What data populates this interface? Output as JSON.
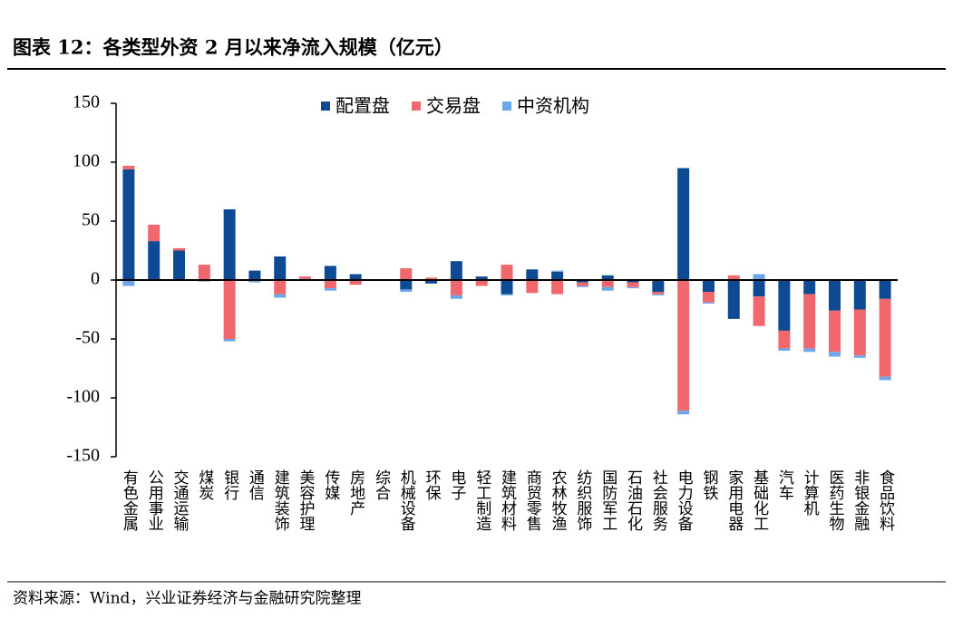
{
  "chart_data": {
    "type": "stacked_bar",
    "title": "图表 12：各类型外资 2 月以来净流入规模（亿元）",
    "source": "资料来源：Wind，兴业证券经济与金融研究院整理",
    "categories": [
      "有色金属",
      "公用事业",
      "交通运输",
      "煤炭",
      "银行",
      "通信",
      "建筑装饰",
      "美容护理",
      "传媒",
      "房地产",
      "综合",
      "机械设备",
      "环保",
      "电子",
      "轻工制造",
      "建筑材料",
      "商贸零售",
      "农林牧渔",
      "纺织服饰",
      "国防军工",
      "石油石化",
      "社会服务",
      "电力设备",
      "钢铁",
      "家用电器",
      "基础化工",
      "汽车",
      "计算机",
      "医药生物",
      "非银金融",
      "食品饮料"
    ],
    "series": [
      {
        "name": "配置盘",
        "color": "#0d4a93",
        "values": [
          94,
          33,
          25,
          -1,
          60,
          8,
          20,
          1,
          12,
          5,
          0,
          -8,
          -3,
          16,
          3,
          -12,
          9,
          7,
          -2,
          4,
          -2,
          -10,
          95,
          -10,
          -33,
          -14,
          -43,
          -12,
          -26,
          -25,
          -16
        ]
      },
      {
        "name": "交易盘",
        "color": "#f0686e",
        "values": [
          3,
          14,
          2,
          13,
          -50,
          0,
          -12,
          2,
          -7,
          -4,
          0,
          10,
          2,
          -13,
          -5,
          13,
          -11,
          -12,
          -3,
          -6,
          -4,
          -2,
          -111,
          -9,
          4,
          -25,
          -15,
          -46,
          -35,
          -39,
          -66
        ]
      },
      {
        "name": "中资机构",
        "color": "#6ca6e8",
        "values": [
          -5,
          0,
          0,
          0,
          -2,
          -2,
          -3,
          0,
          -2,
          0,
          0,
          -2,
          0,
          -3,
          0,
          -1,
          0,
          1,
          -1,
          -3,
          -1,
          -1,
          -3,
          -1,
          0,
          5,
          -2,
          -3,
          -4,
          -2,
          -3
        ]
      }
    ],
    "ylim": [
      -150,
      150
    ],
    "yticks": [
      -150,
      -100,
      -50,
      0,
      50,
      100,
      150
    ],
    "legend": "top"
  }
}
